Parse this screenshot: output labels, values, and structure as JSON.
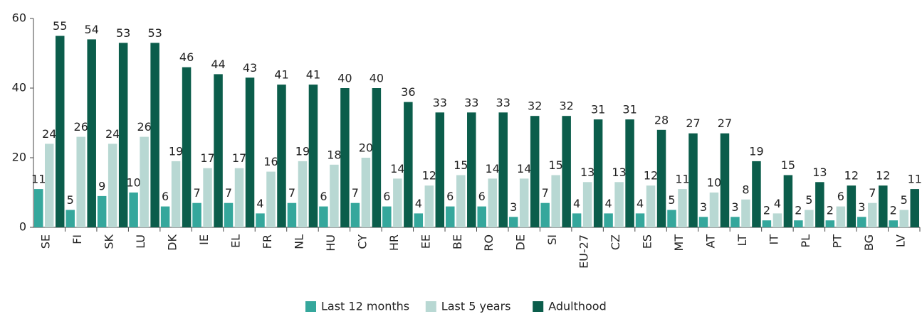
{
  "chart_data": {
    "type": "bar",
    "categories": [
      "SE",
      "FI",
      "SK",
      "LU",
      "DK",
      "IE",
      "EL",
      "FR",
      "NL",
      "HU",
      "CY",
      "HR",
      "EE",
      "BE",
      "RO",
      "DE",
      "SI",
      "EU-27",
      "CZ",
      "ES",
      "MT",
      "AT",
      "LT",
      "IT",
      "PL",
      "PT",
      "BG",
      "LV"
    ],
    "series": [
      {
        "name": "Last 12 months",
        "color": "#35a79c",
        "values": [
          11,
          5,
          9,
          10,
          6,
          7,
          7,
          4,
          7,
          6,
          7,
          6,
          4,
          6,
          6,
          3,
          7,
          4,
          4,
          4,
          5,
          3,
          3,
          2,
          2,
          2,
          3,
          2
        ]
      },
      {
        "name": "Last 5 years",
        "color": "#b8d8d3",
        "values": [
          24,
          26,
          24,
          26,
          19,
          17,
          17,
          16,
          19,
          18,
          20,
          14,
          12,
          15,
          14,
          14,
          15,
          13,
          13,
          12,
          11,
          10,
          8,
          4,
          5,
          6,
          7,
          5
        ]
      },
      {
        "name": "Adulthood",
        "color": "#0b5d4b",
        "values": [
          55,
          54,
          53,
          53,
          46,
          44,
          43,
          41,
          41,
          40,
          40,
          36,
          33,
          33,
          33,
          32,
          32,
          31,
          31,
          28,
          27,
          27,
          19,
          15,
          13,
          12,
          12,
          11
        ]
      }
    ],
    "ylim": [
      0,
      60
    ],
    "yticks": [
      0,
      20,
      40,
      60
    ],
    "grid": false,
    "legend": "bottom"
  }
}
